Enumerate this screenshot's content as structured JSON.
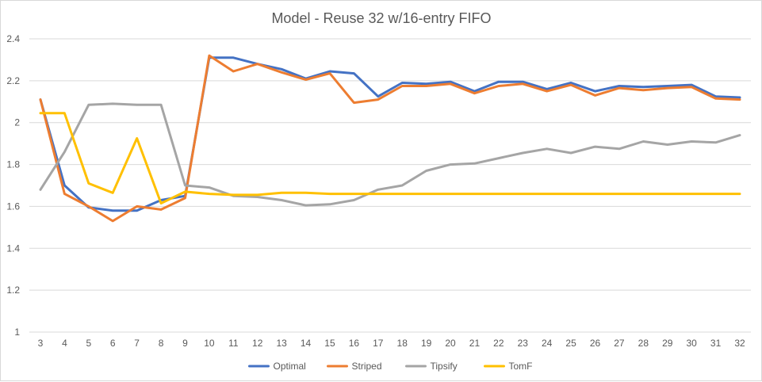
{
  "chart_data": {
    "type": "line",
    "title": "Model - Reuse 32 w/16-entry FIFO",
    "xlabel": "",
    "ylabel": "",
    "ylim": [
      1,
      2.4
    ],
    "yticks": [
      "1",
      "1.2",
      "1.4",
      "1.6",
      "1.8",
      "2",
      "2.2",
      "2.4"
    ],
    "grid": true,
    "legend_position": "bottom",
    "categories": [
      "3",
      "4",
      "5",
      "6",
      "7",
      "8",
      "9",
      "10",
      "11",
      "12",
      "13",
      "14",
      "15",
      "16",
      "17",
      "18",
      "19",
      "20",
      "21",
      "22",
      "23",
      "24",
      "25",
      "26",
      "27",
      "28",
      "29",
      "30",
      "31",
      "32"
    ],
    "series": [
      {
        "name": "Optimal",
        "color": "#4472c4",
        "values": [
          2.11,
          1.7,
          1.595,
          1.58,
          1.58,
          1.63,
          1.65,
          2.31,
          2.31,
          2.28,
          2.255,
          2.21,
          2.245,
          2.235,
          2.125,
          2.19,
          2.185,
          2.195,
          2.15,
          2.195,
          2.195,
          2.16,
          2.19,
          2.15,
          2.175,
          2.17,
          2.175,
          2.18,
          2.125,
          2.12
        ]
      },
      {
        "name": "Striped",
        "color": "#ed7d31",
        "values": [
          2.11,
          1.66,
          1.6,
          1.53,
          1.6,
          1.585,
          1.64,
          2.32,
          2.245,
          2.28,
          2.24,
          2.205,
          2.235,
          2.095,
          2.11,
          2.175,
          2.175,
          2.185,
          2.14,
          2.175,
          2.185,
          2.15,
          2.18,
          2.13,
          2.165,
          2.155,
          2.165,
          2.17,
          2.115,
          2.11
        ]
      },
      {
        "name": "Tipsify",
        "color": "#a5a5a5",
        "values": [
          1.68,
          1.86,
          2.085,
          2.09,
          2.085,
          2.085,
          1.7,
          1.69,
          1.65,
          1.645,
          1.63,
          1.605,
          1.61,
          1.63,
          1.68,
          1.7,
          1.77,
          1.8,
          1.805,
          1.83,
          1.855,
          1.875,
          1.855,
          1.885,
          1.875,
          1.91,
          1.895,
          1.91,
          1.905,
          1.94
        ]
      },
      {
        "name": "TomF",
        "color": "#ffc000",
        "values": [
          2.045,
          2.045,
          1.71,
          1.665,
          1.925,
          1.615,
          1.67,
          1.66,
          1.655,
          1.655,
          1.665,
          1.665,
          1.66,
          1.66,
          1.66,
          1.66,
          1.66,
          1.66,
          1.66,
          1.66,
          1.66,
          1.66,
          1.66,
          1.66,
          1.66,
          1.66,
          1.66,
          1.66,
          1.66,
          1.66
        ]
      }
    ]
  }
}
